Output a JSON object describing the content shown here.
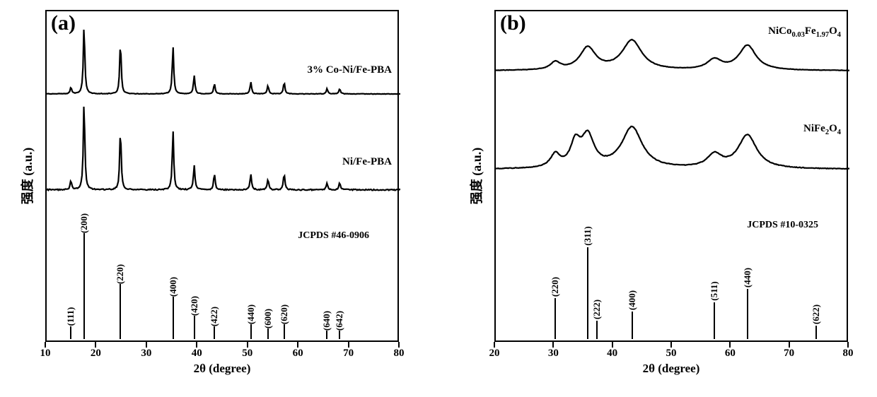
{
  "figure": {
    "background_color": "#ffffff",
    "axis_color": "#000000",
    "line_color": "#000000",
    "border_width": 2.5
  },
  "panel_a": {
    "panel_label": "(a)",
    "panel_label_fontsize": 30,
    "y_label": "强度 (a.u.)",
    "y_label_fontsize": 18,
    "x_label": "2θ (degree)",
    "x_label_fontsize": 17,
    "x_min": 10,
    "x_max": 80,
    "x_ticks": [
      10,
      20,
      30,
      40,
      50,
      60,
      70,
      80
    ],
    "series": {
      "top": {
        "label": "3% Co-Ni/Fe-PBA",
        "peaks_2theta_height": [
          [
            14.8,
            8
          ],
          [
            17.4,
            82
          ],
          [
            24.6,
            62
          ],
          [
            35.0,
            56
          ],
          [
            39.2,
            22
          ],
          [
            43.2,
            12
          ],
          [
            50.4,
            14
          ],
          [
            53.8,
            10
          ],
          [
            57.0,
            14
          ],
          [
            65.5,
            6
          ],
          [
            68.0,
            6
          ]
        ],
        "baseline_noise": 2.0
      },
      "middle": {
        "label": "Ni/Fe-PBA",
        "peaks_2theta_height": [
          [
            14.8,
            10
          ],
          [
            17.4,
            100
          ],
          [
            24.6,
            68
          ],
          [
            35.0,
            66
          ],
          [
            39.2,
            28
          ],
          [
            43.2,
            18
          ],
          [
            50.4,
            18
          ],
          [
            53.8,
            12
          ],
          [
            57.0,
            18
          ],
          [
            65.5,
            8
          ],
          [
            68.0,
            8
          ]
        ],
        "baseline_noise": 4.0
      }
    },
    "reference": {
      "label": "JCPDS #46-0906",
      "peaks": [
        {
          "two_theta": 14.8,
          "height_rel": 0.12,
          "miller": "(111)"
        },
        {
          "two_theta": 17.4,
          "height_rel": 1.0,
          "miller": "(200)"
        },
        {
          "two_theta": 24.6,
          "height_rel": 0.52,
          "miller": "(220)"
        },
        {
          "two_theta": 35.0,
          "height_rel": 0.4,
          "miller": "(400)"
        },
        {
          "two_theta": 39.2,
          "height_rel": 0.22,
          "miller": "(420)"
        },
        {
          "two_theta": 43.2,
          "height_rel": 0.12,
          "miller": "(422)"
        },
        {
          "two_theta": 50.4,
          "height_rel": 0.14,
          "miller": "(440)"
        },
        {
          "two_theta": 53.8,
          "height_rel": 0.1,
          "miller": "(600)"
        },
        {
          "two_theta": 57.0,
          "height_rel": 0.14,
          "miller": "(620)"
        },
        {
          "two_theta": 65.5,
          "height_rel": 0.08,
          "miller": "(640)"
        },
        {
          "two_theta": 68.0,
          "height_rel": 0.08,
          "miller": "(642)"
        }
      ]
    }
  },
  "panel_b": {
    "panel_label": "(b)",
    "panel_label_fontsize": 30,
    "y_label": "强度 (a.u.)",
    "y_label_fontsize": 18,
    "x_label": "2θ (degree)",
    "x_label_fontsize": 17,
    "x_min": 20,
    "x_max": 80,
    "x_ticks": [
      20,
      30,
      40,
      50,
      60,
      70,
      80
    ],
    "series": {
      "top": {
        "label_html": "NiCo<span class='subscript'>0.03</span>Fe<span class='subscript'>1.97</span>O<span class='subscript'>4</span>",
        "broad_peaks_2theta_height_fwhm": [
          [
            30.1,
            6,
            2.0
          ],
          [
            35.6,
            18,
            3.2
          ],
          [
            43.1,
            24,
            4.0
          ],
          [
            57.1,
            8,
            3.0
          ],
          [
            62.7,
            20,
            3.5
          ]
        ]
      },
      "middle": {
        "label_html": "NiFe<span class='subscript'>2</span>O<span class='subscript'>4</span>",
        "broad_peaks_2theta_height_fwhm": [
          [
            30.1,
            10,
            2.0
          ],
          [
            33.5,
            18,
            2.0
          ],
          [
            35.6,
            24,
            2.6
          ],
          [
            43.1,
            32,
            4.2
          ],
          [
            57.1,
            10,
            3.0
          ],
          [
            62.7,
            26,
            3.8
          ]
        ]
      }
    },
    "reference": {
      "label": "JCPDS #10-0325",
      "peaks": [
        {
          "two_theta": 30.1,
          "height_rel": 0.45,
          "miller": "(220)"
        },
        {
          "two_theta": 35.6,
          "height_rel": 1.0,
          "miller": "(311)"
        },
        {
          "two_theta": 37.2,
          "height_rel": 0.2,
          "miller": "(222)"
        },
        {
          "two_theta": 43.1,
          "height_rel": 0.3,
          "miller": "(400)"
        },
        {
          "two_theta": 57.1,
          "height_rel": 0.4,
          "miller": "(511)"
        },
        {
          "two_theta": 62.7,
          "height_rel": 0.55,
          "miller": "(440)"
        },
        {
          "two_theta": 74.3,
          "height_rel": 0.15,
          "miller": "(622)"
        }
      ]
    }
  }
}
